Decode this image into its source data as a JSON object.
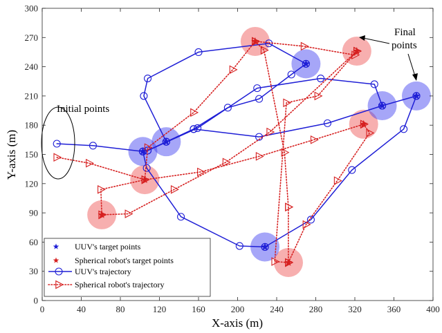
{
  "chart_data": {
    "type": "line",
    "xlabel": "X-axis (m)",
    "ylabel": "Y-axis (m)",
    "xlim": [
      0,
      400
    ],
    "ylim": [
      0,
      300
    ],
    "xticks": [
      0,
      40,
      80,
      120,
      160,
      200,
      240,
      280,
      320,
      360,
      400
    ],
    "yticks": [
      0,
      30,
      60,
      90,
      120,
      150,
      180,
      210,
      240,
      270,
      300
    ],
    "grid": false,
    "legend_position": "bottom-left",
    "annotations": {
      "initial": "Initial points",
      "final_line1": "Final",
      "final_line2": "points"
    },
    "legend": [
      {
        "label": "UUV's target points",
        "kind": "star",
        "color": "#1f1fd6"
      },
      {
        "label": "Spherical robot's target points",
        "kind": "star",
        "color": "#d62020"
      },
      {
        "label": "UUV's trajectory",
        "kind": "line-circle",
        "color": "#1f1fd6"
      },
      {
        "label": "Spherical robot's trajectory",
        "kind": "dotted-triangle",
        "color": "#d62020"
      }
    ],
    "uuv_targets": [
      {
        "x": 103,
        "y": 153
      },
      {
        "x": 127,
        "y": 163
      },
      {
        "x": 270,
        "y": 243
      },
      {
        "x": 348,
        "y": 200
      },
      {
        "x": 383,
        "y": 210
      },
      {
        "x": 228,
        "y": 55
      }
    ],
    "robot_targets": [
      {
        "x": 61,
        "y": 88
      },
      {
        "x": 105,
        "y": 124
      },
      {
        "x": 218,
        "y": 266
      },
      {
        "x": 322,
        "y": 256
      },
      {
        "x": 329,
        "y": 181
      },
      {
        "x": 252,
        "y": 39
      }
    ],
    "uuv_target_color": "#3a3af0",
    "robot_target_color": "#f06060",
    "uuv_color": "#1f1fd6",
    "robot_color": "#d62020",
    "series": [
      {
        "name": "UUV's trajectory",
        "style": "line-circle",
        "markers": true,
        "color": "#1f1fd6",
        "x": [
          15,
          52,
          103
        ],
        "y": [
          161,
          159,
          153
        ]
      },
      {
        "name": "UUV's trajectory",
        "style": "line-circle",
        "markers": true,
        "color": "#1f1fd6",
        "x": [
          103,
          108,
          127
        ],
        "y": [
          153,
          154,
          163
        ]
      },
      {
        "name": "UUV's trajectory",
        "style": "line-circle",
        "markers": true,
        "color": "#1f1fd6",
        "x": [
          127,
          155,
          190,
          222,
          255,
          270
        ],
        "y": [
          163,
          176,
          198,
          207,
          232,
          243
        ]
      },
      {
        "name": "UUV's trajectory",
        "style": "line-circle",
        "markers": true,
        "color": "#1f1fd6",
        "x": [
          127,
          104,
          108,
          160,
          232,
          270
        ],
        "y": [
          163,
          210,
          228,
          255,
          264,
          243
        ]
      },
      {
        "name": "UUV's trajectory",
        "style": "line-circle",
        "markers": true,
        "color": "#1f1fd6",
        "x": [
          108,
          159,
          220,
          285,
          340,
          348
        ],
        "y": [
          154,
          177,
          218,
          228,
          222,
          200
        ]
      },
      {
        "name": "UUV's trajectory",
        "style": "line-circle",
        "markers": true,
        "color": "#1f1fd6",
        "x": [
          155,
          222,
          292,
          348
        ],
        "y": [
          176,
          168,
          182,
          200
        ]
      },
      {
        "name": "UUV's trajectory",
        "style": "line-circle",
        "markers": true,
        "color": "#1f1fd6",
        "x": [
          348,
          383
        ],
        "y": [
          200,
          210
        ]
      },
      {
        "name": "UUV's trajectory",
        "style": "line-circle",
        "markers": true,
        "color": "#1f1fd6",
        "x": [
          103,
          107,
          142,
          202,
          228
        ],
        "y": [
          153,
          136,
          86,
          56,
          55
        ]
      },
      {
        "name": "UUV's trajectory",
        "style": "line-circle",
        "markers": true,
        "color": "#1f1fd6",
        "x": [
          228,
          275,
          317,
          370,
          383
        ],
        "y": [
          55,
          83,
          134,
          176,
          210
        ]
      },
      {
        "name": "Spherical robot's trajectory",
        "style": "dotted-triangle",
        "markers": true,
        "color": "#d62020",
        "x": [
          15,
          48,
          105
        ],
        "y": [
          147,
          141,
          124
        ]
      },
      {
        "name": "Spherical robot's trajectory",
        "style": "dotted-triangle",
        "markers": true,
        "color": "#d62020",
        "x": [
          105,
          108,
          155,
          195,
          218
        ],
        "y": [
          124,
          157,
          193,
          237,
          266
        ]
      },
      {
        "name": "Spherical robot's trajectory",
        "style": "dotted-triangle",
        "markers": true,
        "color": "#d62020",
        "x": [
          105,
          162,
          222,
          278,
          329
        ],
        "y": [
          124,
          132,
          148,
          165,
          181
        ]
      },
      {
        "name": "Spherical robot's trajectory",
        "style": "dotted-triangle",
        "markers": true,
        "color": "#d62020",
        "x": [
          105,
          60,
          61
        ],
        "y": [
          124,
          114,
          88
        ]
      },
      {
        "name": "Spherical robot's trajectory",
        "style": "dotted-triangle",
        "markers": true,
        "color": "#d62020",
        "x": [
          61,
          88,
          135,
          188,
          233,
          322
        ],
        "y": [
          88,
          89,
          114,
          142,
          173,
          256
        ]
      },
      {
        "name": "Spherical robot's trajectory",
        "style": "dotted-triangle",
        "markers": true,
        "color": "#d62020",
        "x": [
          218,
          227,
          248,
          252
        ],
        "y": [
          266,
          257,
          152,
          96
        ]
      },
      {
        "name": "Spherical robot's trajectory",
        "style": "dotted-triangle",
        "markers": true,
        "color": "#d62020",
        "x": [
          252,
          252
        ],
        "y": [
          96,
          39
        ]
      },
      {
        "name": "Spherical robot's trajectory",
        "style": "dotted-triangle",
        "markers": true,
        "color": "#d62020",
        "x": [
          218,
          268,
          320,
          322
        ],
        "y": [
          266,
          261,
          252,
          256
        ]
      },
      {
        "name": "Spherical robot's trajectory",
        "style": "dotted-triangle",
        "markers": true,
        "color": "#d62020",
        "x": [
          322,
          282,
          250,
          238,
          252
        ],
        "y": [
          256,
          210,
          203,
          40,
          39
        ]
      },
      {
        "name": "Spherical robot's trajectory",
        "style": "dotted-triangle",
        "markers": true,
        "color": "#d62020",
        "x": [
          252,
          270,
          302,
          335,
          329
        ],
        "y": [
          39,
          78,
          123,
          172,
          181
        ]
      }
    ]
  }
}
